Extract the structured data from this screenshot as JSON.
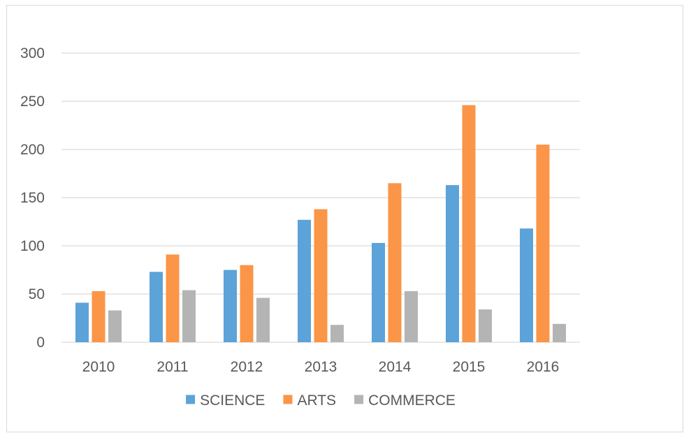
{
  "chart_data": {
    "type": "bar",
    "title": "",
    "xlabel": "",
    "ylabel": "",
    "categories": [
      "2010",
      "2011",
      "2012",
      "2013",
      "2014",
      "2015",
      "2016"
    ],
    "series": [
      {
        "name": "SCIENCE",
        "color": "#5ba3d9",
        "values": [
          41,
          73,
          75,
          127,
          103,
          163,
          118
        ]
      },
      {
        "name": "ARTS",
        "color": "#fb9547",
        "values": [
          53,
          91,
          80,
          138,
          165,
          246,
          205
        ]
      },
      {
        "name": "COMMERCE",
        "color": "#b4b4b4",
        "values": [
          33,
          54,
          46,
          18,
          53,
          34,
          19
        ]
      }
    ],
    "ylim": [
      0,
      300
    ],
    "yticks": [
      "0",
      "50",
      "100",
      "150",
      "200",
      "250",
      "300"
    ],
    "grid": true,
    "gridline_color": "#d9d9d9",
    "legend_position": "bottom"
  }
}
